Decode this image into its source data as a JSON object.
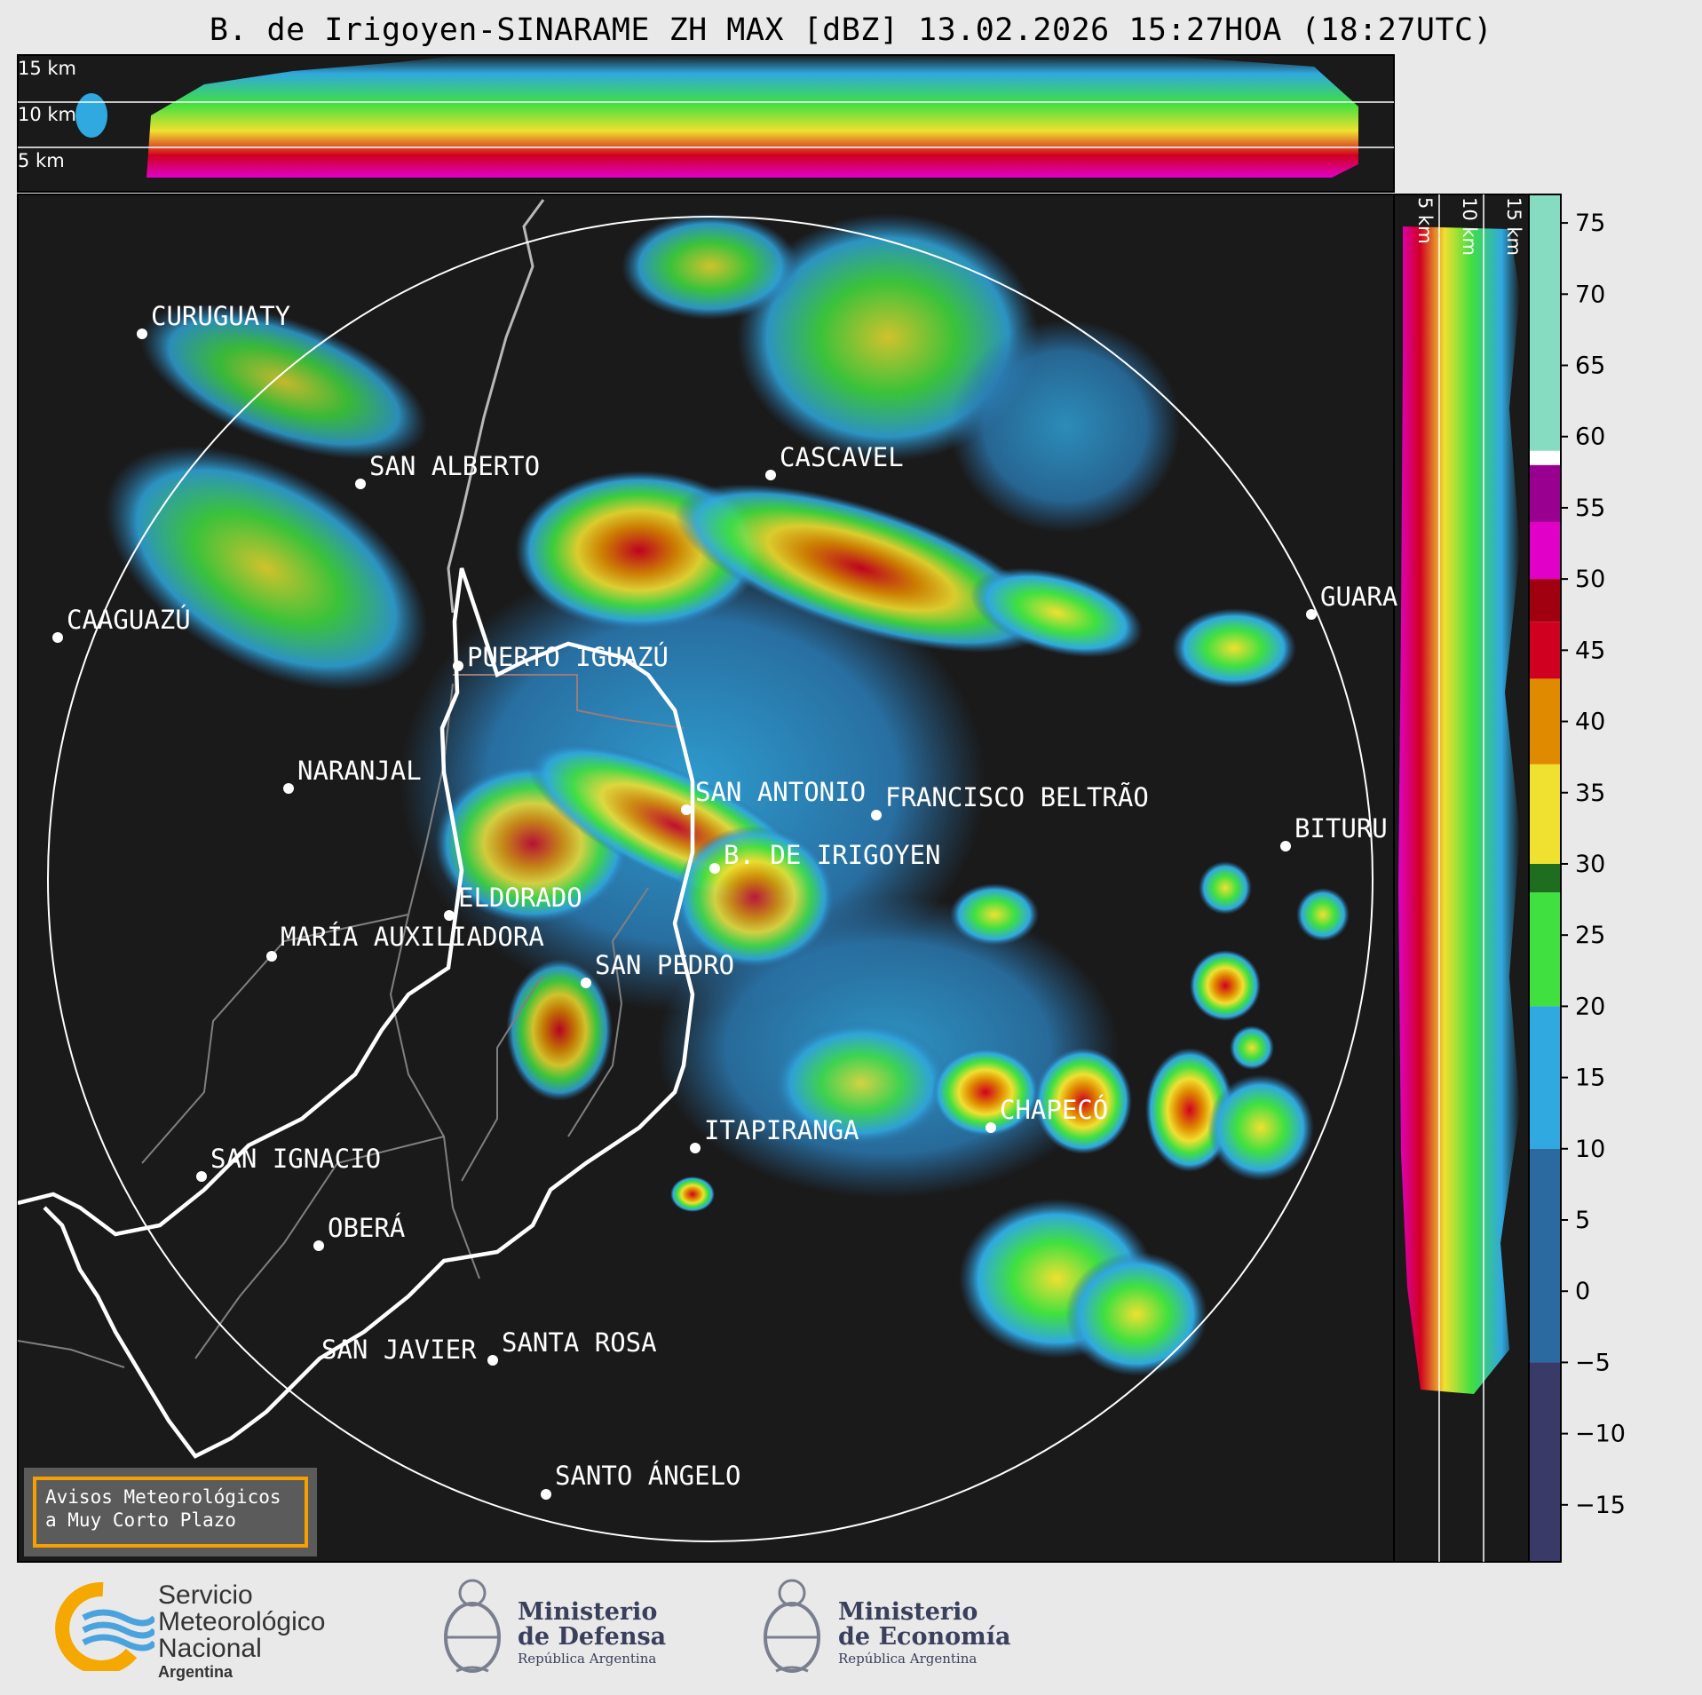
{
  "title": "B. de Irigoyen-SINARAME ZH MAX [dBZ] 13.02.2026 15:27HOA (18:27UTC)",
  "height_labels_top": [
    "15 km",
    "10 km",
    "5 km"
  ],
  "height_labels_side": [
    "5 km",
    "10 km",
    "15 km"
  ],
  "cities": [
    {
      "name": "CURUGUATY"
    },
    {
      "name": "SAN ALBERTO"
    },
    {
      "name": "CAAGUAZÚ"
    },
    {
      "name": "CASCAVEL"
    },
    {
      "name": "GUARA"
    },
    {
      "name": "PUERTO IGUAZÚ"
    },
    {
      "name": "NARANJAL"
    },
    {
      "name": "SAN ANTONIO"
    },
    {
      "name": "FRANCISCO BELTRÃO"
    },
    {
      "name": "BITURU"
    },
    {
      "name": "B. DE IRIGOYEN"
    },
    {
      "name": "ELDORADO"
    },
    {
      "name": "MARÍA AUXILIADORA"
    },
    {
      "name": "SAN PEDRO"
    },
    {
      "name": "CHAPECÓ"
    },
    {
      "name": "ITAPIRANGA"
    },
    {
      "name": "SAN IGNACIO"
    },
    {
      "name": "OBERÁ"
    },
    {
      "name": "SAN JAVIER"
    },
    {
      "name": "SANTA ROSA"
    },
    {
      "name": "SANTO ÁNGELO"
    }
  ],
  "colorbar": {
    "ticks": [
      "75",
      "70",
      "65",
      "60",
      "55",
      "50",
      "45",
      "40",
      "35",
      "30",
      "25",
      "20",
      "15",
      "10",
      "5",
      "0",
      "−5",
      "−10",
      "−15"
    ],
    "colors": {
      "teal": "#85dcc0",
      "white": "#ffffff",
      "magenta": "#e000c8",
      "purple": "#9a0090",
      "red": "#d00020",
      "darkred": "#a00010",
      "orange": "#e08a00",
      "yellow": "#f0e030",
      "olive": "#b8b830",
      "darkgreen": "#1f6e1f",
      "green": "#40e040",
      "lightblue": "#30a8e0",
      "blue": "#2a6aa0",
      "navy": "#3a3a68"
    }
  },
  "alert": {
    "line1": "Avisos Meteorológicos",
    "line2": "a Muy Corto Plazo"
  },
  "footer": {
    "smn": {
      "line1": "Servicio",
      "line2": "Meteorológico",
      "line3": "Nacional",
      "line4": "Argentina"
    },
    "defensa": {
      "line1": "Ministerio",
      "line2": "de Defensa",
      "line3": "República Argentina"
    },
    "economia": {
      "line1": "Ministerio",
      "line2": "de Economía",
      "line3": "República Argentina"
    }
  }
}
